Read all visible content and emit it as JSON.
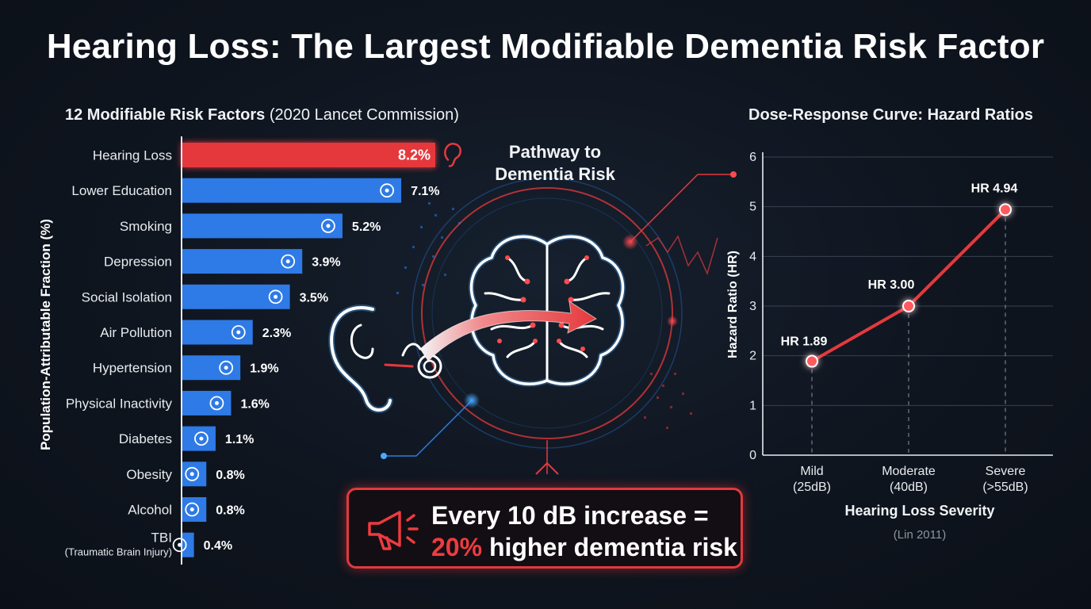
{
  "title": "Hearing Loss: The Largest Modifiable Dementia Risk Factor",
  "bar_section": {
    "title_bold": "12 Modifiable Risk Factors",
    "title_normal": "(2020 Lancet Commission)",
    "y_axis_label": "Population-Attributable Fraction (%)"
  },
  "pathway": {
    "title_line1": "Pathway to",
    "title_line2": "Dementia Risk"
  },
  "callout": {
    "line1": "Every 10 dB increase =",
    "line2_highlight": "20%",
    "line2_rest": " higher dementia risk",
    "icon": "megaphone-icon"
  },
  "line_section": {
    "title": "Dose-Response Curve: Hazard Ratios",
    "x_axis_label": "Hearing Loss Severity",
    "y_axis_label": "Hazard Ratio (HR)",
    "source": "(Lin 2011)"
  },
  "colors": {
    "highlight_red": "#e5393c",
    "bar_blue": "#2e7ae6",
    "accent_red": "#ee3b3f",
    "background": "#0f151f"
  },
  "chart_data": [
    {
      "type": "bar",
      "orientation": "horizontal",
      "title": "12 Modifiable Risk Factors (2020 Lancet Commission)",
      "ylabel": "Population-Attributable Fraction (%)",
      "categories": [
        "Hearing Loss",
        "Lower Education",
        "Smoking",
        "Depression",
        "Social Isolation",
        "Air Pollution",
        "Hypertension",
        "Physical Inactivity",
        "Diabetes",
        "Obesity",
        "Alcohol",
        "TBI"
      ],
      "category_sublabels": [
        "",
        "",
        "",
        "",
        "",
        "",
        "",
        "",
        "",
        "",
        "",
        "(Traumatic Brain Injury)"
      ],
      "values": [
        8.2,
        7.1,
        5.2,
        3.9,
        3.5,
        2.3,
        1.9,
        1.6,
        1.1,
        0.8,
        0.8,
        0.4
      ],
      "value_labels": [
        "8.2%",
        "7.1%",
        "5.2%",
        "3.9%",
        "3.5%",
        "2.3%",
        "1.9%",
        "1.6%",
        "1.1%",
        "0.8%",
        "0.8%",
        "0.4%"
      ],
      "highlight_index": 0,
      "icons": [
        "ear-icon",
        "graduation-cap-icon",
        "cigarette-icon",
        "sad-face-icon",
        "people-icon",
        "factory-icon",
        "blood-pressure-icon",
        "runner-icon",
        "syringe-icon",
        "scale-icon",
        "bottle-icon",
        "brain-icon"
      ],
      "xlim": [
        0,
        8.2
      ]
    },
    {
      "type": "line",
      "title": "Dose-Response Curve: Hazard Ratios",
      "xlabel": "Hearing Loss Severity",
      "ylabel": "Hazard Ratio (HR)",
      "categories": [
        "Mild",
        "Moderate",
        "Severe"
      ],
      "category_sublabels": [
        "(25dB)",
        "(40dB)",
        "(>55dB)"
      ],
      "values": [
        1.89,
        3.0,
        4.94
      ],
      "point_labels": [
        "HR 1.89",
        "HR 3.00",
        "HR 4.94"
      ],
      "ylim": [
        0,
        6
      ],
      "yticks": [
        "0",
        "1",
        "2",
        "3",
        "4",
        "5",
        "6"
      ],
      "grid": true
    }
  ]
}
